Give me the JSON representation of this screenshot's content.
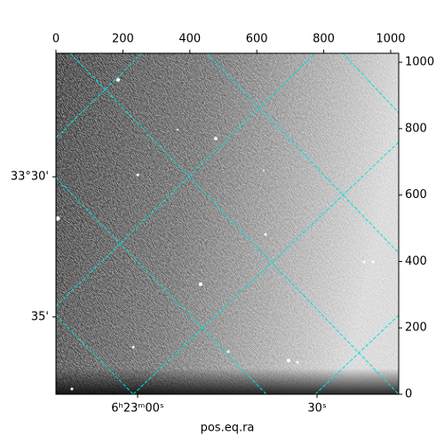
{
  "chart_data": {
    "type": "image",
    "x_label": "pos.eq.ra",
    "xlim": [
      0,
      1024
    ],
    "ylim": [
      0,
      1027
    ],
    "xticks": [
      0,
      200,
      400,
      600,
      800,
      1000
    ],
    "yticks": [
      0,
      200,
      400,
      600,
      800,
      1000
    ],
    "ra_ticks": [
      {
        "value": 244,
        "label": "6ʰ23ᵐ00ˢ"
      },
      {
        "value": 780,
        "label": "30ˢ"
      }
    ],
    "dec_ticks": [
      {
        "value": 655,
        "label": "33°30'"
      },
      {
        "value": 233,
        "label": "35'"
      }
    ],
    "grid_color": "#00e0e0"
  }
}
